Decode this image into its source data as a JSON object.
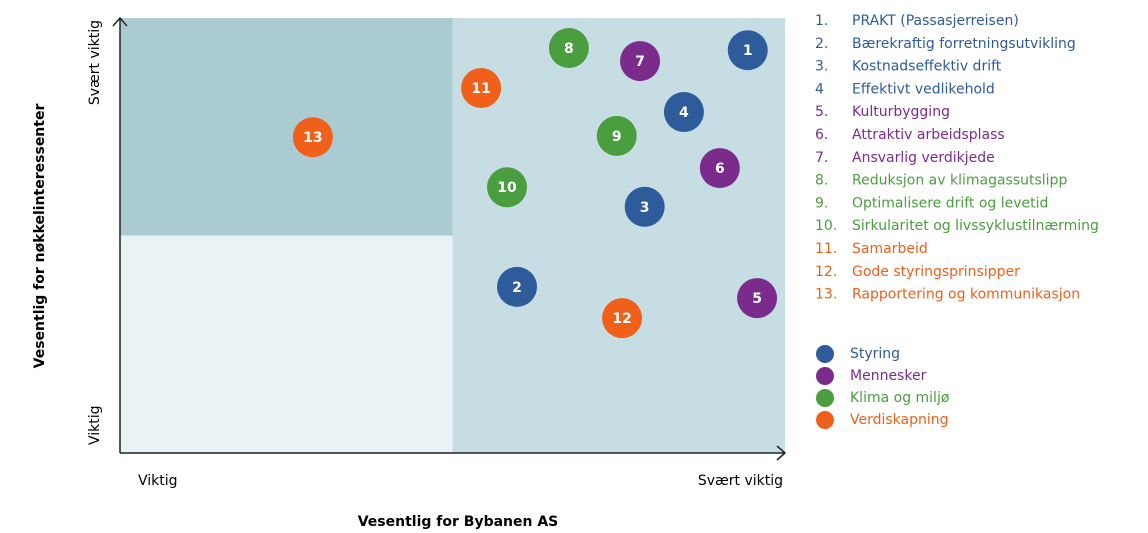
{
  "chart_data": {
    "type": "scatter",
    "xlabel": "Vesentlig for Bybanen AS",
    "ylabel": "Vesentlig for nøkkelinteressenter",
    "xlim": [
      0,
      100
    ],
    "ylim": [
      0,
      100
    ],
    "xticks": [
      {
        "value": 0,
        "label": "Viktig"
      },
      {
        "value": 100,
        "label": "Svært viktig"
      }
    ],
    "yticks": [
      {
        "value": 0,
        "label": "Viktig"
      },
      {
        "value": 100,
        "label": "Svært viktig"
      }
    ],
    "quadrant_split": [
      50,
      50
    ],
    "quadrant_colors": [
      "#abcbd3",
      "#c6dde4",
      "#e9f2f5",
      "#c6dde4"
    ],
    "series": [
      {
        "name": "Styring",
        "color": "#2e5b9a",
        "x": [
          94.4,
          59.7,
          78.9,
          84.8
        ],
        "y": [
          92.6,
          38.2,
          56.6,
          78.4
        ],
        "labels": [
          "1",
          "2",
          "3",
          "4"
        ],
        "items": [
          {
            "number": "1.",
            "text": "PRAKT (Passasjerreisen)"
          },
          {
            "number": "2.",
            "text": "Bærekraftig forretningsutvikling"
          },
          {
            "number": "3.",
            "text": "Kostnadseffektiv drift"
          },
          {
            "number": "4",
            "text": "Effektivt vedlikehold"
          }
        ]
      },
      {
        "name": "Mennesker",
        "color": "#7b2b8c",
        "x": [
          95.8,
          90.2,
          78.2
        ],
        "y": [
          35.6,
          65.5,
          90.1
        ],
        "labels": [
          "5",
          "6",
          "7"
        ],
        "items": [
          {
            "number": "5.",
            "text": "Kulturbygging"
          },
          {
            "number": "6.",
            "text": "Attraktiv arbeidsplass"
          },
          {
            "number": "7.",
            "text": "Ansvarlig verdikjede"
          }
        ]
      },
      {
        "name": "Klima og miljø",
        "color": "#4a9e3f",
        "x": [
          67.5,
          74.7,
          58.2
        ],
        "y": [
          93.1,
          72.9,
          61.1
        ],
        "labels": [
          "8",
          "9",
          "10"
        ],
        "items": [
          {
            "number": "8.",
            "text": "Reduksjon av klimagassutslipp"
          },
          {
            "number": "9.",
            "text": "Optimalisere drift og levetid"
          },
          {
            "number": "10.",
            "text": "Sirkularitet og livssyklustilnærming"
          }
        ]
      },
      {
        "name": "Verdiskapning",
        "color": "#f0601a",
        "x": [
          54.3,
          75.5,
          29.0
        ],
        "y": [
          83.9,
          31.0,
          72.6
        ],
        "labels": [
          "11",
          "12",
          "13"
        ],
        "items": [
          {
            "number": "11.",
            "text": "Samarbeid"
          },
          {
            "number": "12.",
            "text": "Gode styringsprinsipper"
          },
          {
            "number": "13.",
            "text": "Rapportering og kommunikasjon"
          }
        ]
      }
    ]
  }
}
